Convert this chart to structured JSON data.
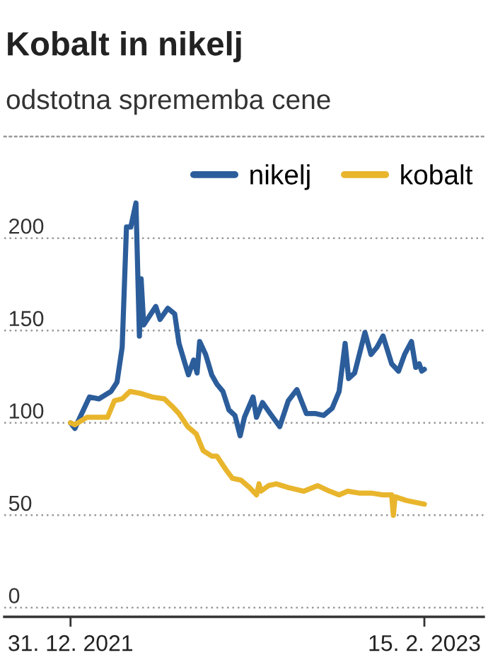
{
  "chart_data": {
    "type": "line",
    "title": "Kobalt in nikelj",
    "subtitle": "odstotna sprememba cene",
    "series": [
      {
        "name": "nikelj",
        "color": "#2c5d9b",
        "x": [
          "2021-12-31",
          "2022-01-05",
          "2022-01-22",
          "2022-02-02",
          "2022-02-16",
          "2022-02-23",
          "2022-03-01",
          "2022-03-06",
          "2022-03-11",
          "2022-03-17",
          "2022-03-21",
          "2022-03-23",
          "2022-03-26",
          "2022-04-02",
          "2022-04-09",
          "2022-04-14",
          "2022-04-23",
          "2022-05-01",
          "2022-05-06",
          "2022-05-13",
          "2022-05-17",
          "2022-05-23",
          "2022-05-27",
          "2022-05-30",
          "2022-06-06",
          "2022-06-13",
          "2022-06-19",
          "2022-06-26",
          "2022-07-03",
          "2022-07-10",
          "2022-07-16",
          "2022-07-21",
          "2022-07-31",
          "2022-08-04",
          "2022-08-11",
          "2022-08-20",
          "2022-08-31",
          "2022-09-10",
          "2022-09-20",
          "2022-10-01",
          "2022-10-12",
          "2022-10-21",
          "2022-10-31",
          "2022-11-08",
          "2022-11-15",
          "2022-11-19",
          "2022-11-26",
          "2022-12-08",
          "2022-12-15",
          "2022-12-22",
          "2022-12-29",
          "2023-01-08",
          "2023-01-16",
          "2023-01-23",
          "2023-01-31",
          "2023-02-05",
          "2023-02-09",
          "2023-02-12",
          "2023-02-15"
        ],
        "values": [
          100,
          97,
          114,
          113,
          117,
          122,
          141,
          206,
          206,
          219,
          147,
          178,
          153,
          158,
          163,
          156,
          162,
          159,
          143,
          132,
          126,
          134,
          127,
          144,
          137,
          126,
          121,
          117,
          107,
          104,
          93,
          103,
          114,
          103,
          111,
          105,
          98,
          112,
          118,
          105,
          105,
          104,
          108,
          117,
          143,
          124,
          127,
          149,
          137,
          141,
          147,
          132,
          128,
          137,
          144,
          130,
          132,
          128,
          129
        ]
      },
      {
        "name": "kobalt",
        "color": "#e8b52c",
        "x": [
          "2021-12-31",
          "2022-01-05",
          "2022-01-19",
          "2022-02-02",
          "2022-02-12",
          "2022-02-20",
          "2022-03-01",
          "2022-03-10",
          "2022-03-22",
          "2022-04-05",
          "2022-04-19",
          "2022-04-28",
          "2022-05-06",
          "2022-05-16",
          "2022-05-26",
          "2022-06-03",
          "2022-06-13",
          "2022-06-19",
          "2022-06-29",
          "2022-07-07",
          "2022-07-17",
          "2022-07-27",
          "2022-08-04",
          "2022-08-07",
          "2022-08-09",
          "2022-08-18",
          "2022-08-27",
          "2022-09-10",
          "2022-09-28",
          "2022-10-14",
          "2022-10-28",
          "2022-11-08",
          "2022-11-18",
          "2022-12-01",
          "2022-12-15",
          "2022-12-29",
          "2023-01-08",
          "2023-01-10",
          "2023-01-12",
          "2023-01-25",
          "2023-02-15"
        ],
        "values": [
          100,
          99,
          103,
          103,
          103,
          112,
          113,
          117,
          116,
          114,
          113,
          109,
          105,
          98,
          94,
          85,
          82,
          82,
          75,
          70,
          69,
          65,
          61,
          67,
          63,
          66,
          67,
          65,
          63,
          66,
          63,
          61,
          63,
          62,
          62,
          61,
          61,
          50,
          60,
          58,
          56
        ]
      }
    ],
    "xlim": [
      "2021-10-15",
      "2023-04-25"
    ],
    "xticks": [
      {
        "value": "2021-12-31",
        "label": "31. 12. 2021"
      },
      {
        "value": "2023-02-15",
        "label": "15. 2. 2023"
      }
    ],
    "ylim": [
      -5,
      255
    ],
    "yticks": [
      0,
      50,
      100,
      150,
      200
    ],
    "grid": "y",
    "legend": "top right",
    "line_style": "solid",
    "marker": "none"
  }
}
